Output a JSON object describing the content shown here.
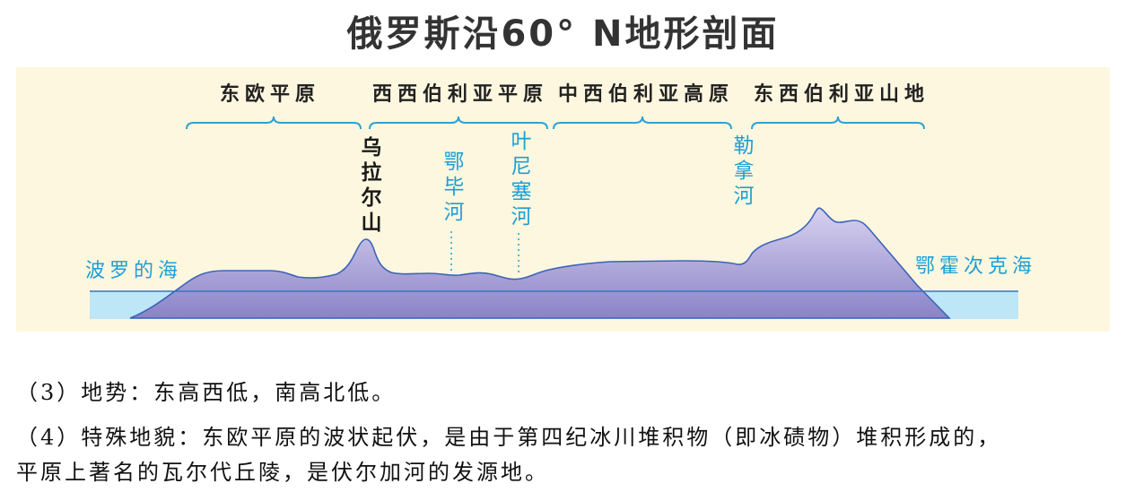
{
  "title": "俄罗斯沿60° N地形剖面",
  "regions": [
    {
      "label": "东欧平原"
    },
    {
      "label": "西西伯利亚平原"
    },
    {
      "label": "中西伯利亚高原"
    },
    {
      "label": "东西伯利亚山地"
    }
  ],
  "mountain": {
    "label": "乌拉尔山"
  },
  "rivers": [
    {
      "label": "鄂毕河"
    },
    {
      "label": "叶尼塞河"
    },
    {
      "label": "勒拿河"
    }
  ],
  "seas": [
    {
      "label": "波罗的海"
    },
    {
      "label": "鄂霍次克海"
    }
  ],
  "notes": [
    "（3）地势：东高西低，南高北低。",
    "（4）特殊地貌：东欧平原的波状起伏，是由于第四纪冰川堆积物（即冰碛物）堆积形成的，",
    "平原上著名的瓦尔代丘陵，是伏尔加河的发源地。"
  ],
  "colors": {
    "panel_background": "#fdf7df",
    "label_blue": "#1d9fd6",
    "brace": "#2ba2d6",
    "land_top": "#d9d3f1",
    "land_bottom": "#8a82c6",
    "land_outline": "#3d63b8",
    "water": "#bde7f6",
    "sea_level_line": "#3a74c2"
  }
}
